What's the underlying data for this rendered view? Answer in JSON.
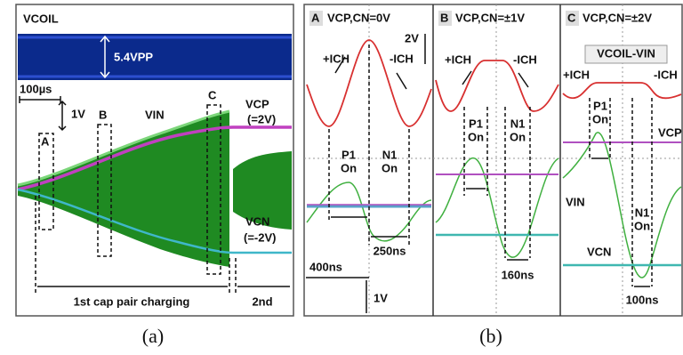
{
  "panel_a": {
    "signal_top": "VCOIL",
    "amplitude": "5.4VPP",
    "time_div": "100µs",
    "volt_div": "1V",
    "markers": [
      "A",
      "B",
      "C"
    ],
    "vin": "VIN",
    "vcp": "VCP",
    "vcp_value": "(=2V)",
    "vcn": "VCN",
    "vcn_value": "(=-2V)",
    "phase_1": "1st cap pair charging",
    "phase_2": "2nd",
    "caption": "(a)"
  },
  "panel_b": {
    "subpanels": [
      {
        "letter": "A",
        "condition": "VCP,CN=0V",
        "plus_ich": "+ICH",
        "minus_ich": "-ICH",
        "p1": "P1",
        "p1_state": "On",
        "n1": "N1",
        "n1_state": "On",
        "duration": "250ns",
        "volt_scale": "2V",
        "time_div": "400ns",
        "volt_div": "1V"
      },
      {
        "letter": "B",
        "condition": "VCP,CN=±1V",
        "plus_ich": "+ICH",
        "minus_ich": "-ICH",
        "p1": "P1",
        "p1_state": "On",
        "n1": "N1",
        "n1_state": "On",
        "duration": "160ns"
      },
      {
        "letter": "C",
        "condition": "VCP,CN=±2V",
        "signal": "VCOIL-VIN",
        "plus_ich": "+ICH",
        "minus_ich": "-ICH",
        "p1": "P1",
        "p1_state": "On",
        "n1": "N1",
        "n1_state": "On",
        "vcp": "VCP",
        "vin": "VIN",
        "vcn": "VCN",
        "duration": "100ns"
      }
    ],
    "caption": "(b)"
  }
}
